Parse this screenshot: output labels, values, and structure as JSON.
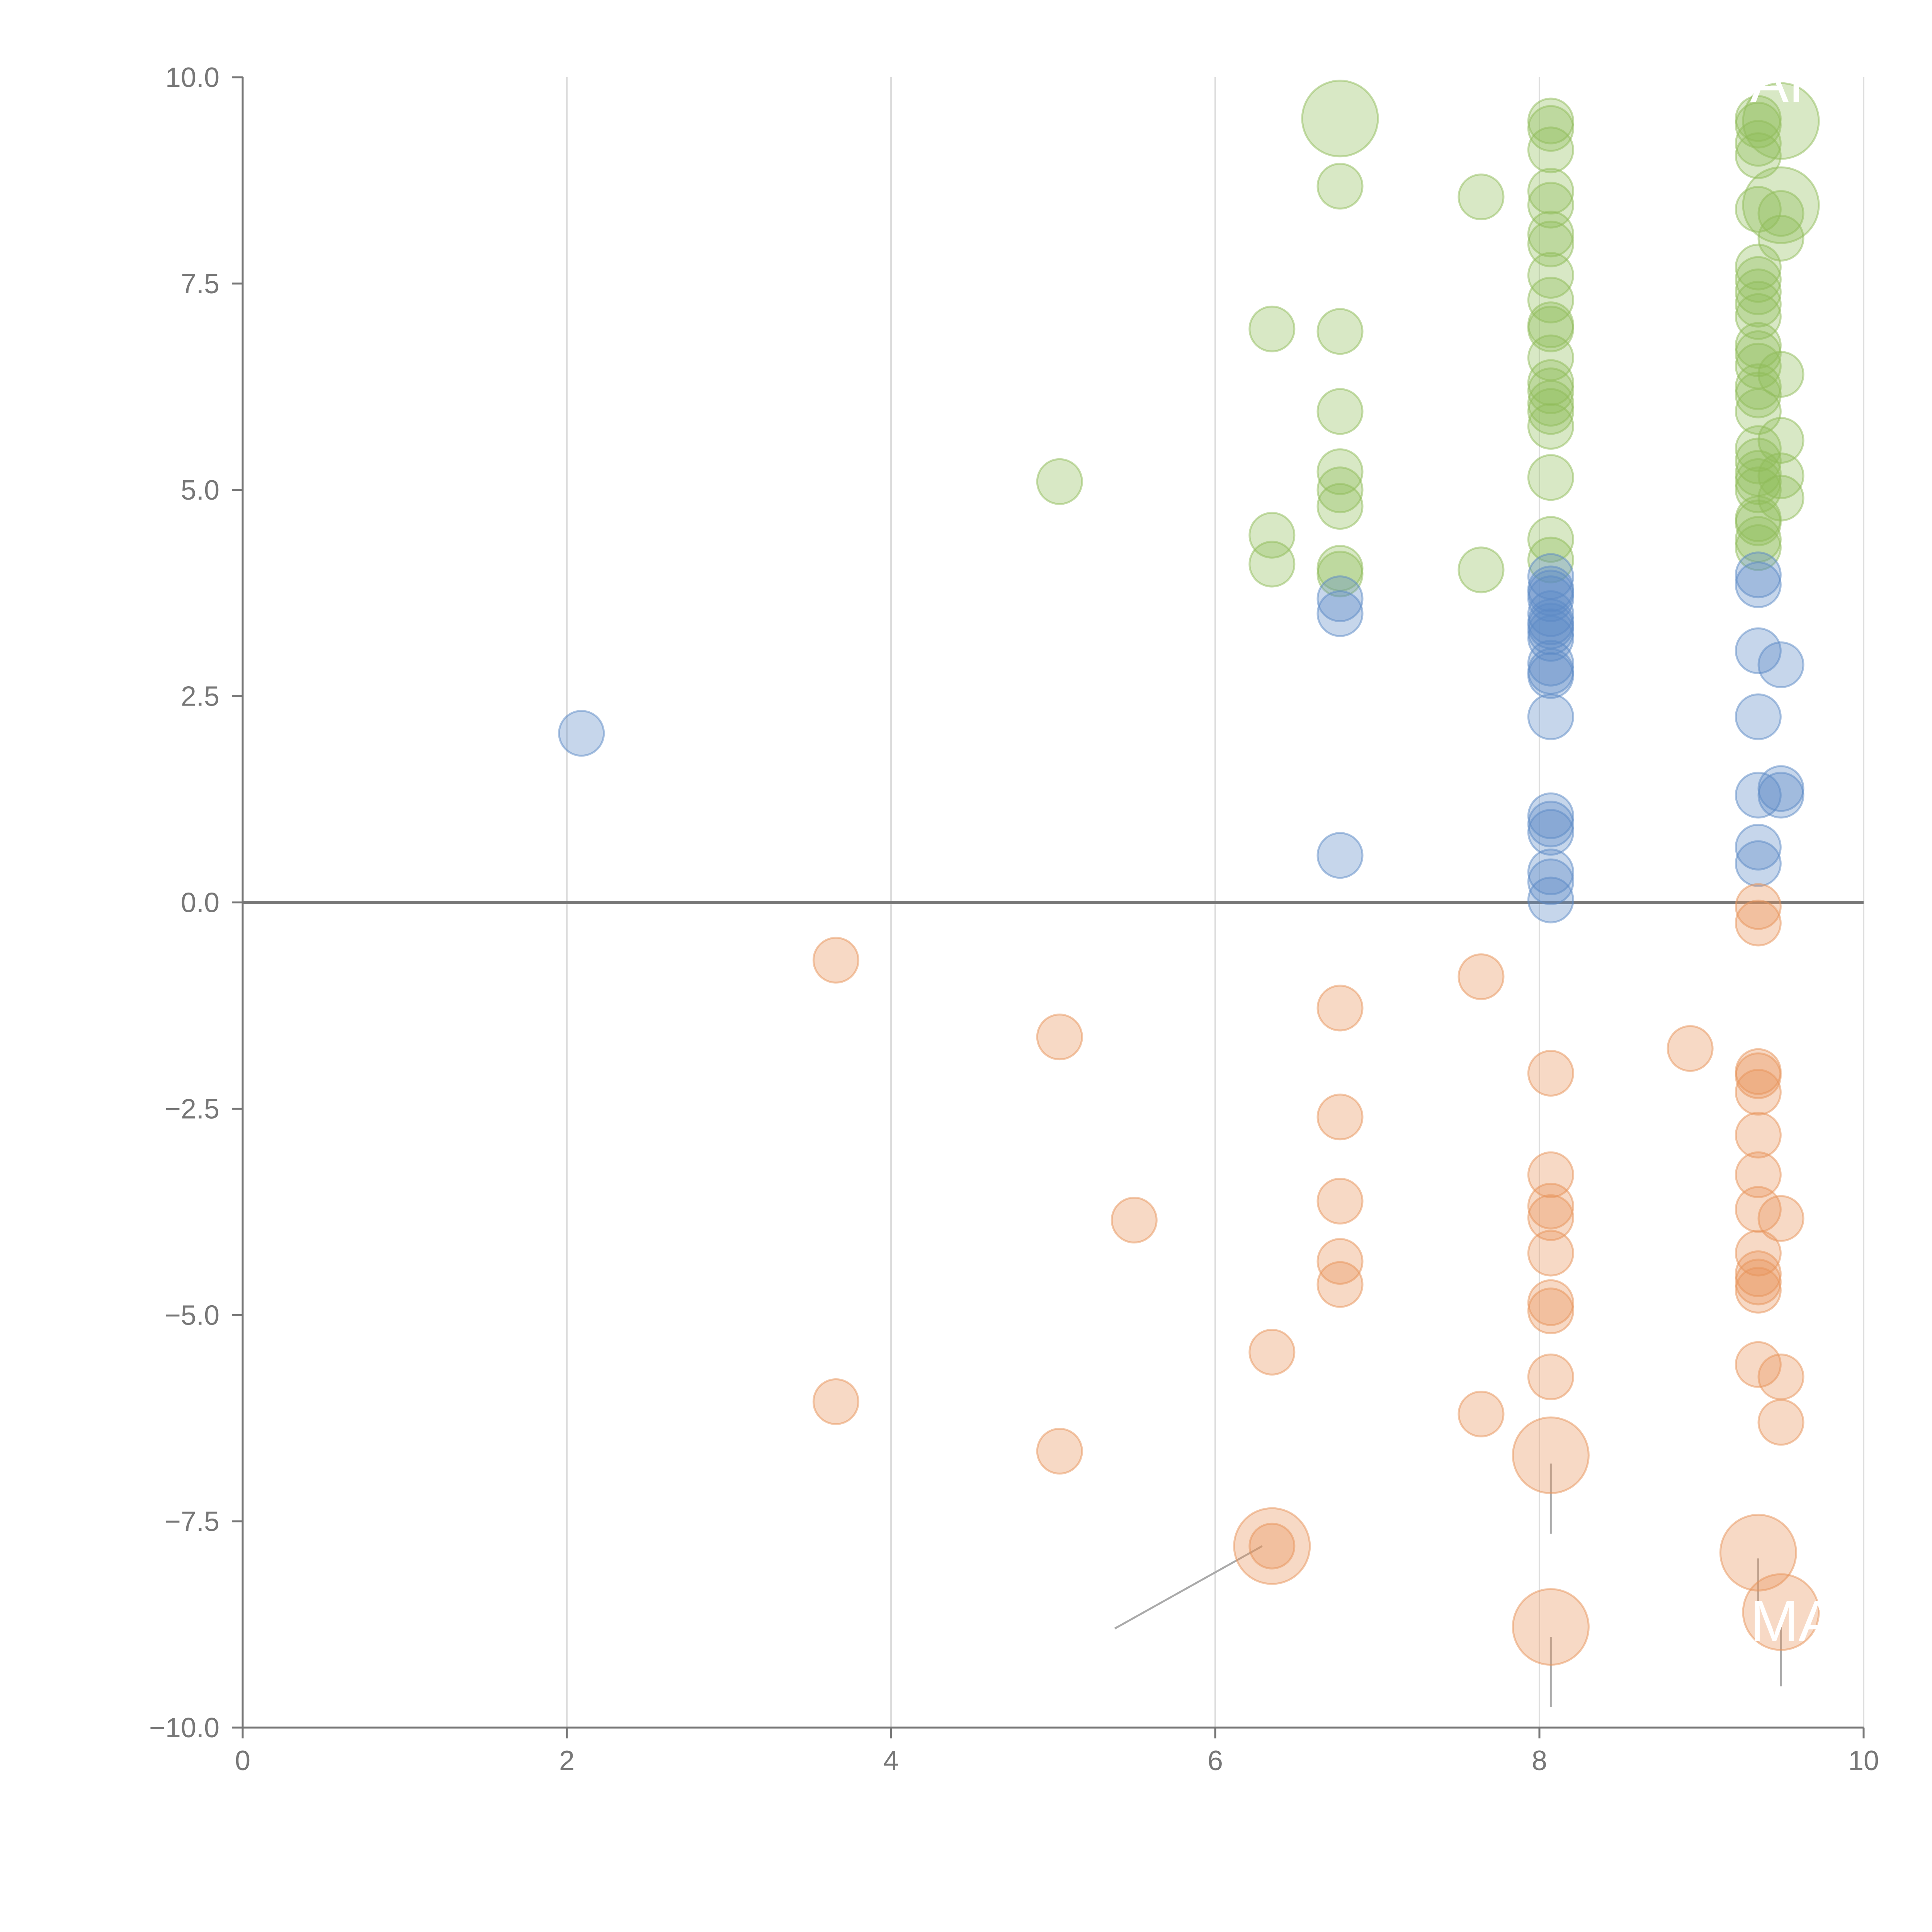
{
  "chart_data": {
    "type": "scatter",
    "title": "",
    "xlabel": "",
    "ylabel": "",
    "xlim": [
      0,
      10
    ],
    "ylim": [
      -10,
      10
    ],
    "x_ticks": [
      "0",
      "2",
      "4",
      "6",
      "8",
      "10"
    ],
    "y_ticks": [
      "10.0",
      "7.5",
      "5.0",
      "2.5",
      "0.0",
      "−2.5",
      "−5.0",
      "−7.5",
      "−10.0"
    ],
    "grid": "vertical",
    "zero_line": true,
    "series": [
      {
        "name": "green",
        "color": "#8fbc5a",
        "points": [
          [
            6.77,
            8.68
          ],
          [
            7.64,
            8.55
          ],
          [
            6.35,
            6.95
          ],
          [
            6.77,
            6.92
          ],
          [
            6.77,
            5.95
          ],
          [
            5.04,
            5.1
          ],
          [
            6.77,
            5.22
          ],
          [
            6.77,
            5.0
          ],
          [
            6.77,
            4.8
          ],
          [
            6.35,
            4.45
          ],
          [
            6.35,
            4.1
          ],
          [
            6.77,
            4.05
          ],
          [
            6.77,
            3.98
          ],
          [
            7.64,
            4.03
          ],
          [
            8.07,
            9.47
          ],
          [
            8.07,
            9.38
          ],
          [
            8.07,
            9.12
          ],
          [
            8.07,
            8.62
          ],
          [
            8.07,
            8.45
          ],
          [
            8.07,
            8.1
          ],
          [
            8.07,
            7.98
          ],
          [
            8.07,
            7.6
          ],
          [
            8.07,
            7.3
          ],
          [
            8.07,
            7.0
          ],
          [
            8.07,
            6.95
          ],
          [
            8.07,
            6.6
          ],
          [
            8.07,
            6.3
          ],
          [
            8.07,
            6.2
          ],
          [
            8.07,
            6.05
          ],
          [
            8.07,
            5.95
          ],
          [
            8.07,
            5.77
          ],
          [
            8.07,
            5.15
          ],
          [
            8.07,
            4.4
          ],
          [
            8.07,
            4.15
          ],
          [
            9.35,
            9.5
          ],
          [
            9.35,
            9.42
          ],
          [
            9.35,
            9.2
          ],
          [
            9.35,
            9.05
          ],
          [
            9.35,
            8.4
          ],
          [
            9.35,
            7.7
          ],
          [
            9.35,
            7.55
          ],
          [
            9.35,
            7.4
          ],
          [
            9.35,
            7.25
          ],
          [
            9.35,
            7.1
          ],
          [
            9.35,
            6.75
          ],
          [
            9.35,
            6.65
          ],
          [
            9.35,
            6.5
          ],
          [
            9.35,
            6.25
          ],
          [
            9.35,
            6.15
          ],
          [
            9.35,
            5.95
          ],
          [
            9.35,
            5.5
          ],
          [
            9.35,
            5.35
          ],
          [
            9.35,
            5.2
          ],
          [
            9.35,
            5.1
          ],
          [
            9.35,
            5.0
          ],
          [
            9.35,
            4.65
          ],
          [
            9.35,
            4.6
          ],
          [
            9.35,
            4.4
          ],
          [
            9.35,
            4.3
          ],
          [
            9.49,
            8.35
          ],
          [
            9.49,
            8.05
          ],
          [
            9.49,
            6.4
          ],
          [
            9.49,
            5.6
          ],
          [
            9.49,
            5.17
          ],
          [
            9.49,
            4.9
          ]
        ],
        "large_points": [
          [
            6.77,
            9.5
          ],
          [
            9.49,
            9.47
          ],
          [
            9.49,
            8.45
          ]
        ]
      },
      {
        "name": "blue",
        "color": "#5b8ac6",
        "points": [
          [
            2.09,
            2.05
          ],
          [
            6.77,
            3.68
          ],
          [
            6.77,
            3.5
          ],
          [
            6.77,
            0.57
          ],
          [
            8.07,
            3.95
          ],
          [
            8.07,
            3.8
          ],
          [
            8.07,
            3.75
          ],
          [
            8.07,
            3.68
          ],
          [
            8.07,
            3.5
          ],
          [
            8.07,
            3.4
          ],
          [
            8.07,
            3.35
          ],
          [
            8.07,
            3.28
          ],
          [
            8.07,
            3.2
          ],
          [
            8.07,
            2.9
          ],
          [
            8.07,
            2.8
          ],
          [
            8.07,
            2.75
          ],
          [
            8.07,
            2.25
          ],
          [
            8.07,
            1.05
          ],
          [
            8.07,
            0.95
          ],
          [
            8.07,
            0.85
          ],
          [
            8.07,
            0.37
          ],
          [
            8.07,
            0.25
          ],
          [
            8.07,
            0.03
          ],
          [
            9.35,
            3.97
          ],
          [
            9.35,
            3.85
          ],
          [
            9.35,
            3.05
          ],
          [
            9.35,
            2.25
          ],
          [
            9.35,
            1.3
          ],
          [
            9.35,
            0.67
          ],
          [
            9.35,
            0.47
          ],
          [
            9.49,
            2.88
          ],
          [
            9.49,
            1.38
          ],
          [
            9.49,
            1.3
          ]
        ],
        "large_points": []
      },
      {
        "name": "orange",
        "color": "#e8935a",
        "points": [
          [
            3.66,
            -0.7
          ],
          [
            5.04,
            -1.63
          ],
          [
            3.66,
            -6.05
          ],
          [
            5.04,
            -6.65
          ],
          [
            5.5,
            -3.85
          ],
          [
            6.35,
            -5.45
          ],
          [
            6.35,
            -7.8
          ],
          [
            6.77,
            -1.28
          ],
          [
            6.77,
            -2.6
          ],
          [
            6.77,
            -3.62
          ],
          [
            6.77,
            -4.35
          ],
          [
            6.77,
            -4.63
          ],
          [
            7.64,
            -0.9
          ],
          [
            7.64,
            -6.2
          ],
          [
            8.93,
            -1.77
          ],
          [
            8.07,
            -2.07
          ],
          [
            8.07,
            -3.3
          ],
          [
            8.07,
            -3.68
          ],
          [
            8.07,
            -3.82
          ],
          [
            8.07,
            -4.25
          ],
          [
            8.07,
            -4.85
          ],
          [
            8.07,
            -4.95
          ],
          [
            8.07,
            -5.75
          ],
          [
            9.35,
            -0.05
          ],
          [
            9.35,
            -0.25
          ],
          [
            9.35,
            -2.05
          ],
          [
            9.35,
            -2.1
          ],
          [
            9.35,
            -2.3
          ],
          [
            9.35,
            -2.82
          ],
          [
            9.35,
            -3.3
          ],
          [
            9.35,
            -3.72
          ],
          [
            9.35,
            -4.25
          ],
          [
            9.35,
            -4.5
          ],
          [
            9.35,
            -4.6
          ],
          [
            9.35,
            -4.7
          ],
          [
            9.35,
            -5.6
          ],
          [
            9.49,
            -3.83
          ],
          [
            9.49,
            -5.75
          ],
          [
            9.49,
            -6.3
          ]
        ],
        "large_points": [
          [
            6.35,
            -7.8
          ],
          [
            8.07,
            -6.7
          ],
          [
            8.07,
            -8.78
          ],
          [
            9.35,
            -7.88
          ],
          [
            9.49,
            -8.6
          ]
        ]
      }
    ],
    "annotations": [
      {
        "text": "AF",
        "x": 9.3,
        "y": 9.7,
        "color": "#ffffff"
      },
      {
        "text": "MA",
        "x": 9.3,
        "y": -8.95,
        "color": "#ffffff"
      }
    ],
    "leader_lines": [
      {
        "from": [
          7.05,
          9.52
        ],
        "to": [
          7.2,
          9.58
        ],
        "color": "#ffffff"
      },
      {
        "from": [
          9.39,
          8.4
        ],
        "to": [
          9.49,
          8.45
        ],
        "color": "#ffffff"
      },
      {
        "from": [
          6.29,
          -7.8
        ],
        "to": [
          5.38,
          -8.8
        ],
        "color": "#aaaaaa"
      },
      {
        "from": [
          8.07,
          -6.8
        ],
        "to": [
          8.07,
          -7.65
        ],
        "color": "#aaaaaa"
      },
      {
        "from": [
          8.07,
          -8.9
        ],
        "to": [
          8.07,
          -9.75
        ],
        "color": "#aaaaaa"
      },
      {
        "from": [
          9.35,
          -7.95
        ],
        "to": [
          9.35,
          -8.85
        ],
        "color": "#aaaaaa"
      },
      {
        "from": [
          9.49,
          -8.7
        ],
        "to": [
          9.49,
          -9.5
        ],
        "color": "#aaaaaa"
      }
    ]
  }
}
